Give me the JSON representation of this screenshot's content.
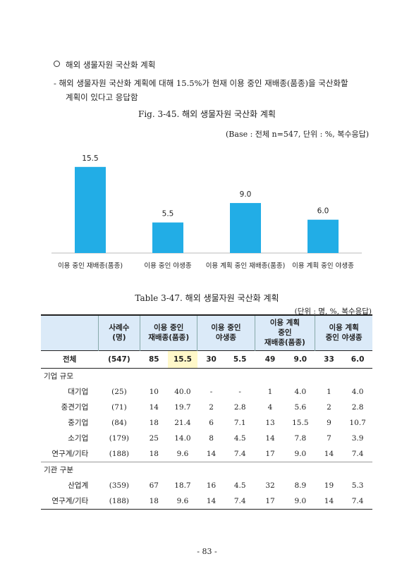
{
  "bullet": "해외 생물자원 국산화 계획",
  "dash_line1": "- 해외 생물자원 국산화 계획에 대해 15.5%가 현재 이용 중인 재배종(품종)을 국산화할",
  "dash_line2": "계획이 있다고 응답함",
  "figure_caption": "Fig. 3-45. 해외 생물자원 국산화 계획",
  "base_note": "(Base : 전체 n=547, 단위 : %, 복수응답)",
  "chart_data": {
    "type": "bar",
    "categories": [
      "이용 중인 재배종(품종)",
      "이용 중인 야생종",
      "이용 계획 중인 재배종(품종)",
      "이용 계획 중인 야생종"
    ],
    "values": [
      15.5,
      5.5,
      9.0,
      6.0
    ],
    "data_labels": [
      "15.5",
      "5.5",
      "9.0",
      "6.0"
    ],
    "bar_color": "#22ade6",
    "ylim": [
      0,
      17
    ],
    "grid": false,
    "legend": "none"
  },
  "table_caption": "Table 3-47. 해외 생물자원 국산화 계획",
  "table_unit": "(단위 : 명, %, 복수응답)",
  "header": {
    "count": [
      "사례수",
      "(명)"
    ],
    "g1": [
      "이용 중인",
      "재배종(품종)"
    ],
    "g2": [
      "이용 중인",
      "야생종"
    ],
    "g3": [
      "이용 계획",
      "중인",
      "재배종(품종)"
    ],
    "g4": [
      "이용 계획",
      "중인 야생종"
    ]
  },
  "total": {
    "label": "전체",
    "cells": [
      "(547)",
      "85",
      "15.5",
      "30",
      "5.5",
      "49",
      "9.0",
      "33",
      "6.0"
    ]
  },
  "groups": [
    {
      "title": "기업 규모",
      "rows": [
        {
          "label": "대기업",
          "cells": [
            "(25)",
            "10",
            "40.0",
            "-",
            "-",
            "1",
            "4.0",
            "1",
            "4.0"
          ]
        },
        {
          "label": "중견기업",
          "cells": [
            "(71)",
            "14",
            "19.7",
            "2",
            "2.8",
            "4",
            "5.6",
            "2",
            "2.8"
          ]
        },
        {
          "label": "중기업",
          "cells": [
            "(84)",
            "18",
            "21.4",
            "6",
            "7.1",
            "13",
            "15.5",
            "9",
            "10.7"
          ]
        },
        {
          "label": "소기업",
          "cells": [
            "(179)",
            "25",
            "14.0",
            "8",
            "4.5",
            "14",
            "7.8",
            "7",
            "3.9"
          ]
        },
        {
          "label": "연구계/기타",
          "cells": [
            "(188)",
            "18",
            "9.6",
            "14",
            "7.4",
            "17",
            "9.0",
            "14",
            "7.4"
          ]
        }
      ]
    },
    {
      "title": "기관 구분",
      "rows": [
        {
          "label": "산업계",
          "cells": [
            "(359)",
            "67",
            "18.7",
            "16",
            "4.5",
            "32",
            "8.9",
            "19",
            "5.3"
          ]
        },
        {
          "label": "연구계/기타",
          "cells": [
            "(188)",
            "18",
            "9.6",
            "14",
            "7.4",
            "17",
            "9.0",
            "14",
            "7.4"
          ]
        }
      ]
    }
  ],
  "page_number": "- 83 -"
}
